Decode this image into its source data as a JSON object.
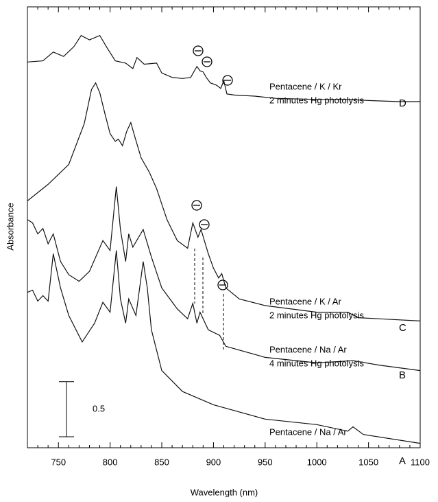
{
  "chart_data": {
    "type": "line",
    "x_label": "Wavelength (nm)",
    "y_label": "Absorbance",
    "xlim": [
      720,
      1100
    ],
    "ylim": [
      0,
      4
    ],
    "xticks": [
      750,
      800,
      850,
      900,
      950,
      1000,
      1050,
      1100
    ],
    "xminorticks": [
      720,
      730,
      740,
      760,
      770,
      780,
      790,
      810,
      820,
      830,
      840,
      860,
      870,
      880,
      890,
      910,
      920,
      930,
      940,
      960,
      970,
      980,
      990,
      1010,
      1020,
      1030,
      1040,
      1060,
      1070,
      1080,
      1090
    ],
    "scale_bar": 0.5,
    "series": [
      {
        "name": "D",
        "description": [
          "Pentacene / K / Kr",
          "2 minutes Hg photolysis"
        ],
        "color": "#111111",
        "x": [
          720,
          735,
          745,
          755,
          765,
          772,
          780,
          790,
          797,
          805,
          815,
          822,
          826,
          833,
          845,
          850,
          860,
          870,
          878,
          884,
          887,
          890,
          893,
          897,
          903,
          907,
          910,
          913,
          920,
          940,
          960,
          1000,
          1030,
          1050,
          1080,
          1100
        ],
        "values": [
          3.5,
          3.51,
          3.59,
          3.55,
          3.64,
          3.74,
          3.7,
          3.74,
          3.63,
          3.51,
          3.49,
          3.44,
          3.54,
          3.48,
          3.49,
          3.4,
          3.36,
          3.35,
          3.36,
          3.46,
          3.42,
          3.41,
          3.36,
          3.31,
          3.29,
          3.26,
          3.33,
          3.21,
          3.2,
          3.19,
          3.17,
          3.16,
          3.16,
          3.15,
          3.14,
          3.14
        ]
      },
      {
        "name": "C",
        "description": [
          "Pentacene / K / Ar",
          "2 minutes Hg photolysis"
        ],
        "color": "#111111",
        "x": [
          720,
          740,
          760,
          775,
          782,
          786,
          790,
          795,
          800,
          805,
          808,
          812,
          816,
          820,
          824,
          830,
          838,
          845,
          855,
          865,
          875,
          880,
          885,
          888,
          895,
          900,
          905,
          908,
          912,
          925,
          950,
          1000,
          1030,
          1040,
          1060,
          1100
        ],
        "values": [
          2.24,
          2.39,
          2.57,
          2.94,
          3.25,
          3.31,
          3.22,
          3.03,
          2.85,
          2.78,
          2.8,
          2.74,
          2.87,
          2.95,
          2.82,
          2.63,
          2.5,
          2.35,
          2.07,
          1.88,
          1.81,
          2.04,
          1.91,
          1.98,
          1.76,
          1.63,
          1.54,
          1.58,
          1.45,
          1.35,
          1.29,
          1.23,
          1.23,
          1.18,
          1.17,
          1.15
        ]
      },
      {
        "name": "B",
        "description": [
          "Pentacene / Na / Ar",
          "4 minutes Hg photolysis"
        ],
        "color": "#111111",
        "x": [
          720,
          725,
          730,
          735,
          740,
          745,
          752,
          760,
          770,
          780,
          793,
          800,
          806,
          810,
          815,
          818,
          822,
          832,
          840,
          850,
          865,
          875,
          880,
          884,
          887,
          895,
          906,
          912,
          950,
          1000,
          1035,
          1060,
          1100
        ],
        "values": [
          2.07,
          2.04,
          1.94,
          1.99,
          1.85,
          1.94,
          1.69,
          1.57,
          1.51,
          1.6,
          1.88,
          1.79,
          2.37,
          1.98,
          1.69,
          1.94,
          1.82,
          1.98,
          1.73,
          1.45,
          1.26,
          1.17,
          1.31,
          1.13,
          1.23,
          1.07,
          1.02,
          0.92,
          0.82,
          0.77,
          0.79,
          0.75,
          0.7
        ]
      },
      {
        "name": "A",
        "description": [
          "Pentacene / Na / Ar"
        ],
        "color": "#111111",
        "x": [
          720,
          725,
          730,
          735,
          740,
          745,
          752,
          760,
          773,
          785,
          793,
          800,
          806,
          810,
          815,
          818,
          825,
          832,
          836,
          840,
          850,
          870,
          900,
          950,
          1000,
          1030,
          1035,
          1045,
          1100
        ],
        "values": [
          1.41,
          1.43,
          1.33,
          1.38,
          1.33,
          1.76,
          1.45,
          1.2,
          0.96,
          1.13,
          1.32,
          1.23,
          1.79,
          1.35,
          1.13,
          1.35,
          1.2,
          1.69,
          1.45,
          1.07,
          0.7,
          0.51,
          0.39,
          0.26,
          0.21,
          0.15,
          0.19,
          0.12,
          0.04
        ]
      }
    ]
  }
}
